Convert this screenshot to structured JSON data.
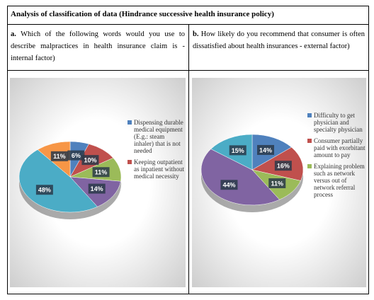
{
  "table": {
    "title": "Analysis of classification of data (Hindrance successive health insurance policy)",
    "questions": [
      {
        "label": "a.",
        "text": "Which of the following words would you use to describe malpractices in health insurance claim is - internal factor)"
      },
      {
        "label": "b.",
        "text": "How likely do you recommend that consumer is often dissatisfied about health insurances - external factor)"
      }
    ]
  },
  "chart_data": [
    {
      "type": "pie",
      "categories": [
        "Dispensing durable medical equipment (E.g.: steam inhaler) that is not needed",
        "Keeping outpatient as inpatient without medical necessity",
        null,
        null,
        null,
        null
      ],
      "values": [
        6,
        10,
        11,
        14,
        48,
        11
      ],
      "value_labels": [
        "6%",
        "10%",
        "11%",
        "14%",
        "48%",
        "11%"
      ],
      "colors": [
        "#4f81bd",
        "#c0504d",
        "#9bbb59",
        "#8064a2",
        "#4bacc6",
        "#f79646"
      ]
    },
    {
      "type": "pie",
      "categories": [
        "Difficulty to get physician and specialty physician",
        "Consumer partially paid with exorbitant amount to pay",
        "Explaining problem such as network versus out of network referral process",
        null,
        null
      ],
      "values": [
        14,
        16,
        11,
        44,
        15
      ],
      "value_labels": [
        "14%",
        "16%",
        "11%",
        "44%",
        "15%"
      ],
      "colors": [
        "#4f81bd",
        "#c0504d",
        "#9bbb59",
        "#8064a2",
        "#4bacc6"
      ]
    }
  ]
}
